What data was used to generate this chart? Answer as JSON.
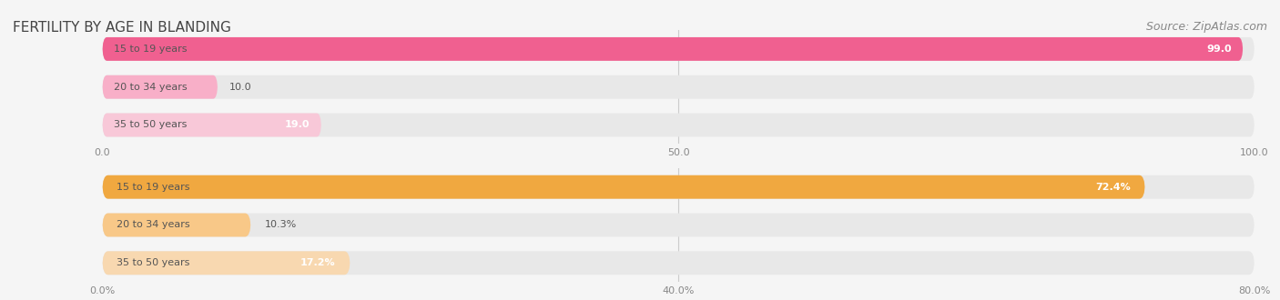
{
  "title": "FERTILITY BY AGE IN BLANDING",
  "source": "Source: ZipAtlas.com",
  "top_chart": {
    "categories": [
      "15 to 19 years",
      "20 to 34 years",
      "35 to 50 years"
    ],
    "values": [
      99.0,
      10.0,
      19.0
    ],
    "xlim": [
      0,
      100
    ],
    "xticks": [
      0.0,
      50.0,
      100.0
    ],
    "bar_colors": [
      "#f06090",
      "#f8afc8",
      "#f8c8d8"
    ],
    "label_color": "#555555",
    "value_color_inside": "#ffffff",
    "value_color_outside": "#555555"
  },
  "bottom_chart": {
    "categories": [
      "15 to 19 years",
      "20 to 34 years",
      "35 to 50 years"
    ],
    "values": [
      72.4,
      10.3,
      17.2
    ],
    "xlim": [
      0,
      80
    ],
    "xticks": [
      0.0,
      40.0,
      80.0
    ],
    "xtick_labels": [
      "0.0%",
      "40.0%",
      "80.0%"
    ],
    "bar_colors": [
      "#f0a840",
      "#f8c888",
      "#f8d8b0"
    ],
    "label_color": "#555555",
    "value_color_inside": "#ffffff",
    "value_color_outside": "#555555"
  },
  "background_color": "#f5f5f5",
  "bar_bg_color": "#e8e8e8",
  "title_fontsize": 11,
  "source_fontsize": 9,
  "label_fontsize": 8,
  "value_fontsize": 8,
  "tick_fontsize": 8
}
